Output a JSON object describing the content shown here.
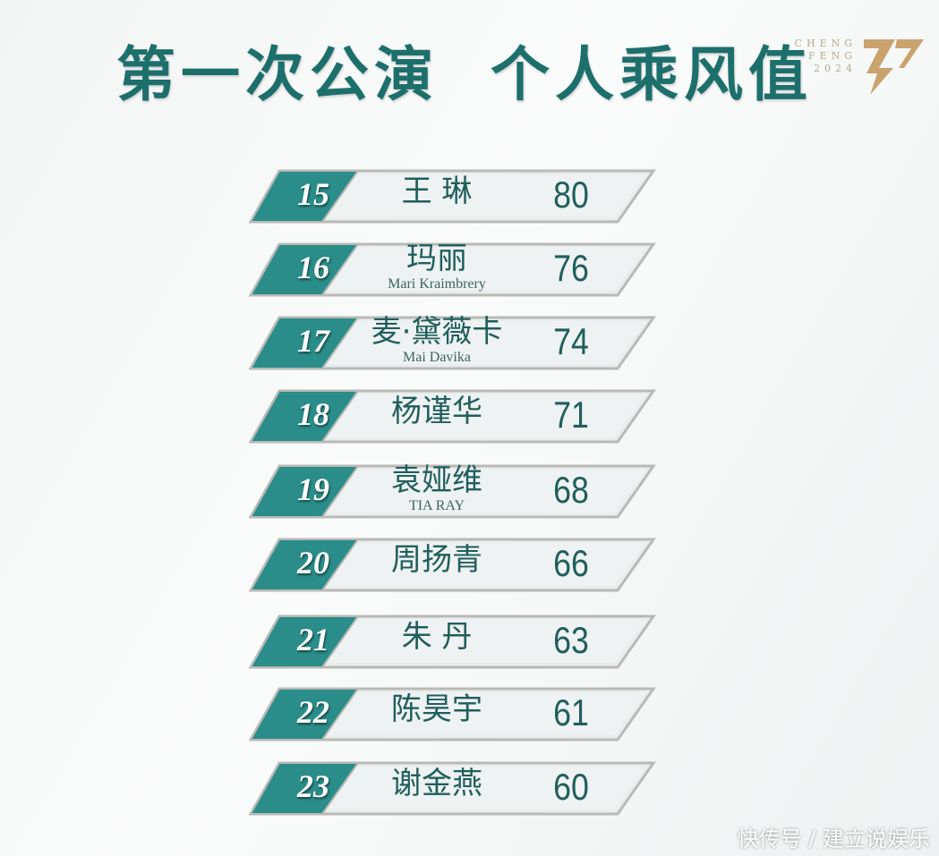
{
  "title": "第一次公演  个人乘风值",
  "logo": {
    "text_lines": [
      "CHENG",
      "FENG",
      "2024"
    ],
    "color": "#b8a88f"
  },
  "accent_color": "#2a8d89",
  "rankings": [
    {
      "rank": "15",
      "name": "王 琳",
      "en": "",
      "score": "80"
    },
    {
      "rank": "16",
      "name": "玛丽",
      "en": "Mari Kraimbrery",
      "score": "76"
    },
    {
      "rank": "17",
      "name": "麦·黛薇卡",
      "en": "Mai Davika",
      "score": "74"
    },
    {
      "rank": "18",
      "name": "杨谨华",
      "en": "",
      "score": "71"
    },
    {
      "rank": "19",
      "name": "袁娅维",
      "en": "TIA RAY",
      "score": "68"
    },
    {
      "rank": "20",
      "name": "周扬青",
      "en": "",
      "score": "66"
    },
    {
      "rank": "21",
      "name": "朱 丹",
      "en": "",
      "score": "63"
    },
    {
      "rank": "22",
      "name": "陈昊宇",
      "en": "",
      "score": "61"
    },
    {
      "rank": "23",
      "name": "谢金燕",
      "en": "",
      "score": "60"
    }
  ],
  "watermark": "快传号 / 建立说娱乐"
}
